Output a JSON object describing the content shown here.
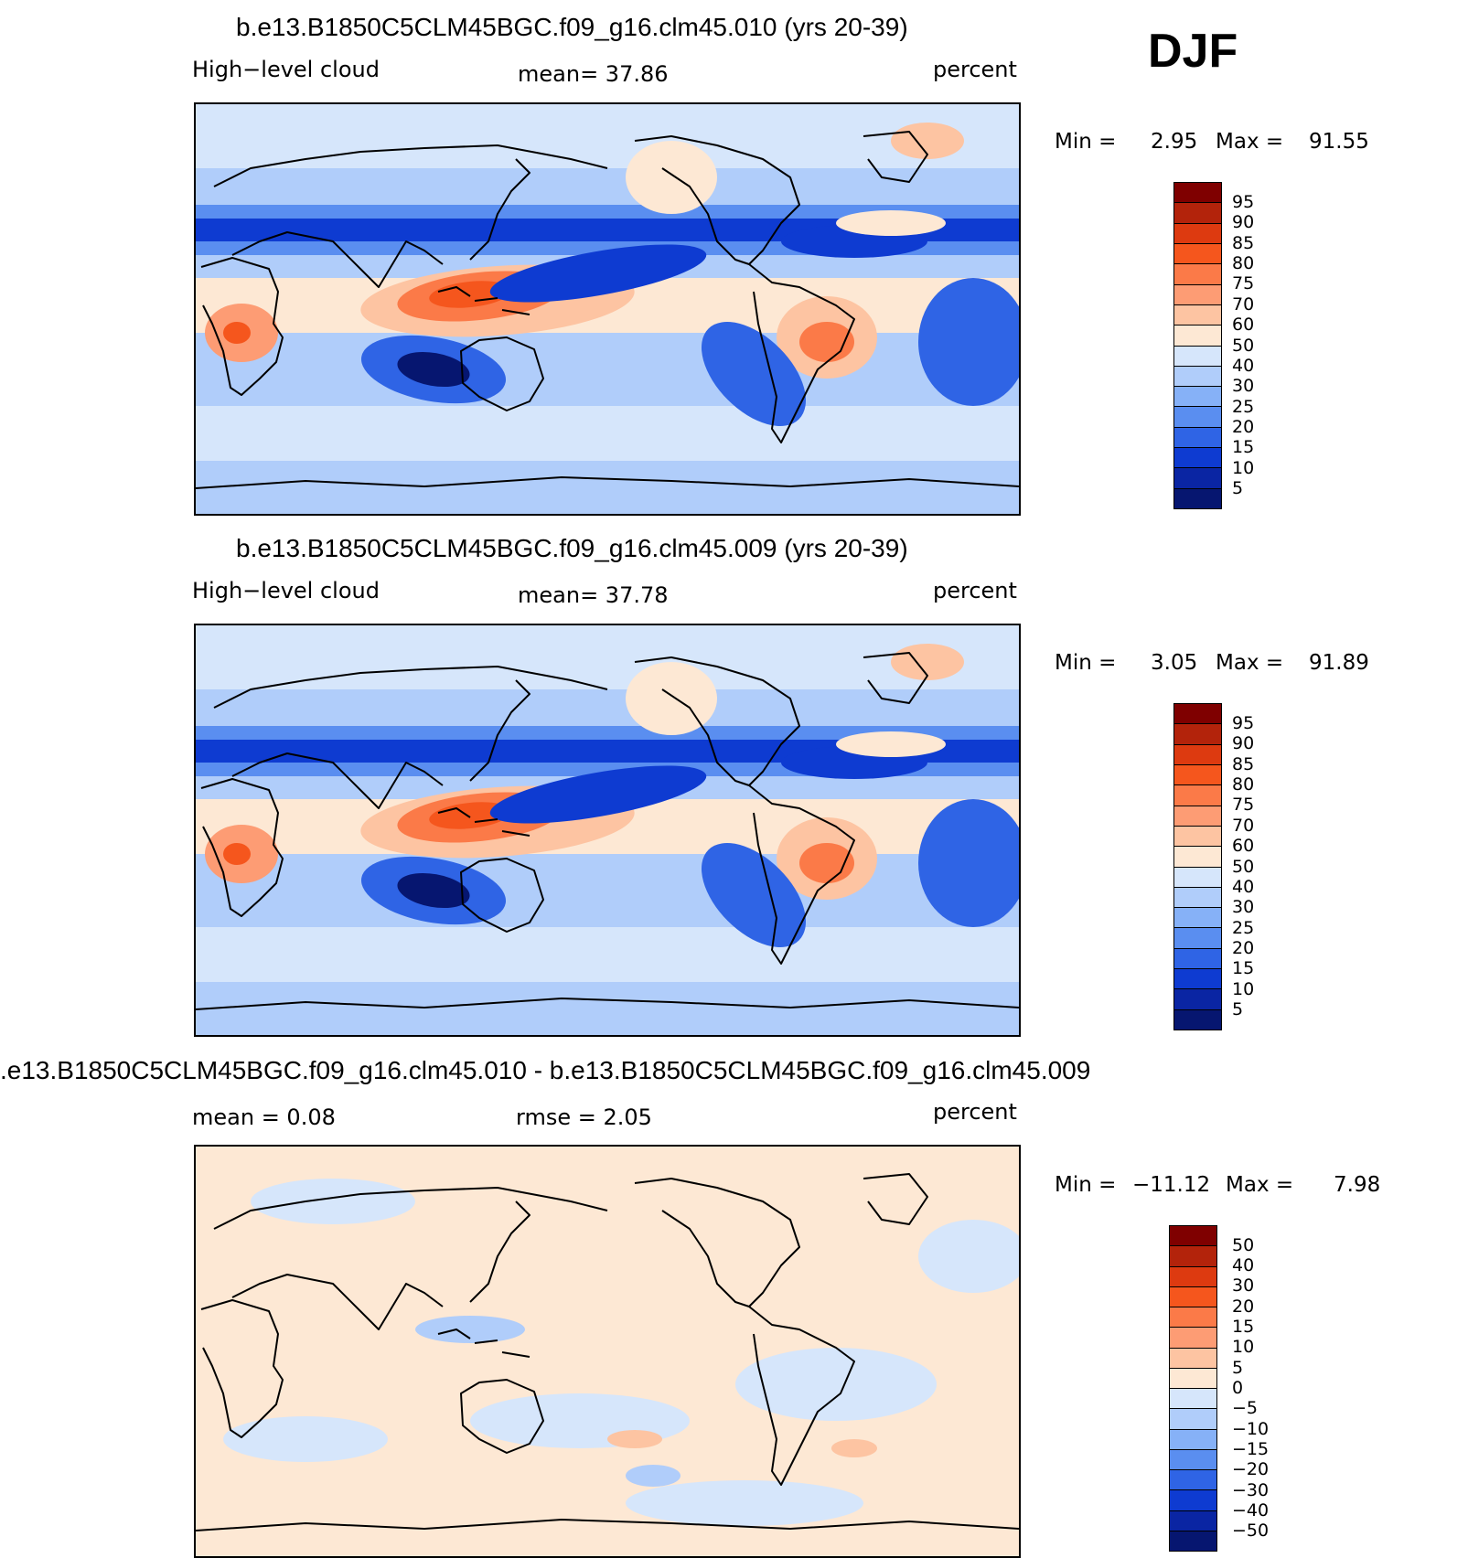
{
  "season": "DJF",
  "chart_data": [
    {
      "type": "contour-map",
      "title": "b.e13.B1850C5CLM45BGC.f09_g16.clm45.010 (yrs 20-39)",
      "left_label": "High−level cloud",
      "center_label": "mean=   37.86",
      "right_label": "percent",
      "min_label": "Min =",
      "min_value": "2.95",
      "max_label": "Max =",
      "max_value": "91.55",
      "levels": [
        "95",
        "90",
        "85",
        "80",
        "75",
        "70",
        "60",
        "50",
        "40",
        "30",
        "25",
        "20",
        "15",
        "10",
        "5"
      ],
      "colors": [
        "#7f0000",
        "#b3230b",
        "#dd3a10",
        "#f5561d",
        "#fb7a48",
        "#fd9c74",
        "#fdc4a2",
        "#fde8d4",
        "#d6e6fb",
        "#b0cdfa",
        "#86b1f7",
        "#5a8ef0",
        "#2f64e5",
        "#0e3bd1",
        "#0a25a3",
        "#061670"
      ]
    },
    {
      "type": "contour-map",
      "title": "b.e13.B1850C5CLM45BGC.f09_g16.clm45.009 (yrs 20-39)",
      "left_label": "High−level cloud",
      "center_label": "mean=   37.78",
      "right_label": "percent",
      "min_label": "Min =",
      "min_value": "3.05",
      "max_label": "Max =",
      "max_value": "91.89",
      "levels": [
        "95",
        "90",
        "85",
        "80",
        "75",
        "70",
        "60",
        "50",
        "40",
        "30",
        "25",
        "20",
        "15",
        "10",
        "5"
      ],
      "colors": [
        "#7f0000",
        "#b3230b",
        "#dd3a10",
        "#f5561d",
        "#fb7a48",
        "#fd9c74",
        "#fdc4a2",
        "#fde8d4",
        "#d6e6fb",
        "#b0cdfa",
        "#86b1f7",
        "#5a8ef0",
        "#2f64e5",
        "#0e3bd1",
        "#0a25a3",
        "#061670"
      ]
    },
    {
      "type": "contour-map",
      "title": ".e13.B1850C5CLM45BGC.f09_g16.clm45.010 - b.e13.B1850C5CLM45BGC.f09_g16.clm45.009",
      "left_label": "mean =     0.08",
      "center_label": "rmse =     2.05",
      "right_label": "percent",
      "min_label": "Min =",
      "min_value": "−11.12",
      "max_label": "Max =",
      "max_value": "7.98",
      "levels": [
        "50",
        "40",
        "30",
        "20",
        "15",
        "10",
        "5",
        "0",
        "−5",
        "−10",
        "−15",
        "−20",
        "−30",
        "−40",
        "−50"
      ],
      "colors": [
        "#7f0000",
        "#b3230b",
        "#dd3a10",
        "#f5561d",
        "#fb7a48",
        "#fd9c74",
        "#fdc4a2",
        "#fde8d4",
        "#d6e6fb",
        "#b0cdfa",
        "#86b1f7",
        "#5a8ef0",
        "#2f64e5",
        "#0e3bd1",
        "#0a25a3",
        "#061670"
      ]
    }
  ]
}
